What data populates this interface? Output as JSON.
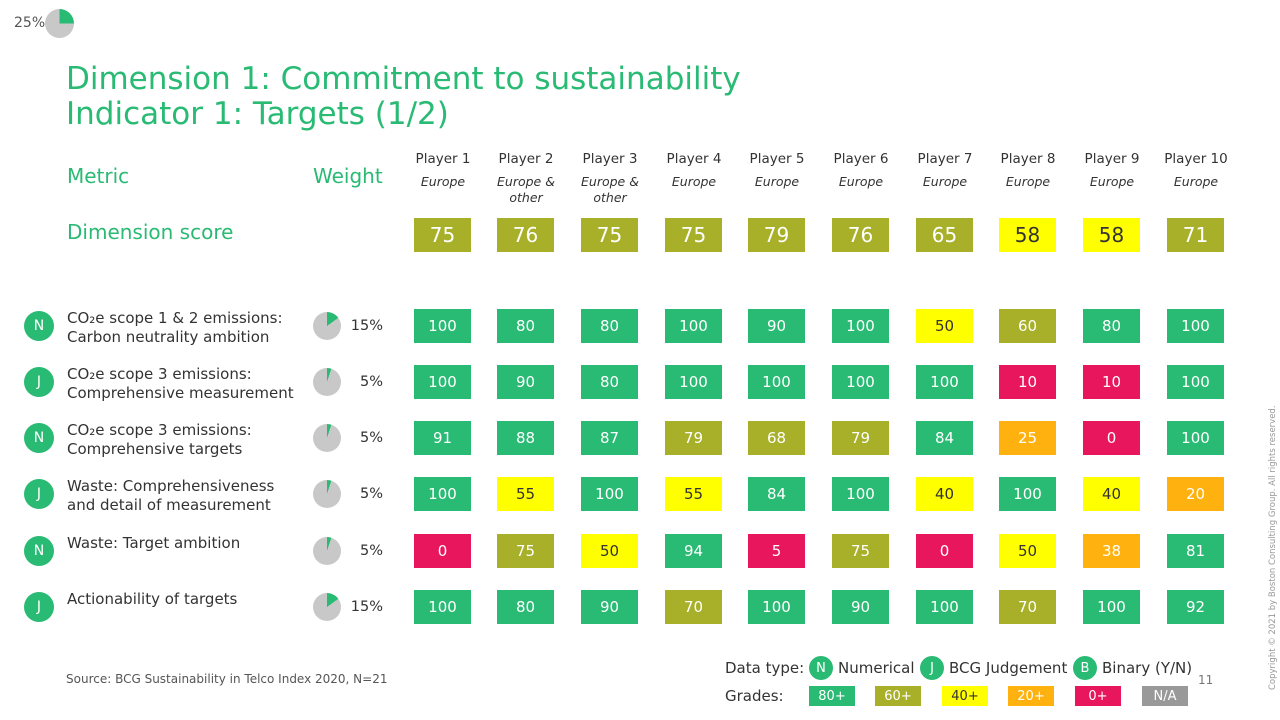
{
  "progress": {
    "label": "25%",
    "value": 0.25
  },
  "title": {
    "line1": "Dimension 1: Commitment to sustainability",
    "line2": "Indicator 1: Targets (1/2)"
  },
  "headers": {
    "metric": "Metric",
    "weight": "Weight",
    "dimension_score": "Dimension score"
  },
  "players": [
    {
      "name": "Player 1",
      "region": "Europe"
    },
    {
      "name": "Player 2",
      "region": "Europe & other"
    },
    {
      "name": "Player 3",
      "region": "Europe & other"
    },
    {
      "name": "Player 4",
      "region": "Europe"
    },
    {
      "name": "Player 5",
      "region": "Europe"
    },
    {
      "name": "Player 6",
      "region": "Europe"
    },
    {
      "name": "Player 7",
      "region": "Europe"
    },
    {
      "name": "Player 8",
      "region": "Europe"
    },
    {
      "name": "Player 9",
      "region": "Europe"
    },
    {
      "name": "Player 10",
      "region": "Europe"
    }
  ],
  "dimension_scores": [
    "75",
    "76",
    "75",
    "75",
    "79",
    "76",
    "65",
    "58",
    "58",
    "71"
  ],
  "rows": [
    {
      "type": "N",
      "label_line1": "CO₂e scope 1 & 2 emissions:",
      "label_line2": "Carbon neutrality ambition",
      "weight": "15%",
      "weight_value": 0.15,
      "values": [
        "100",
        "80",
        "80",
        "100",
        "90",
        "100",
        "50",
        "60",
        "80",
        "100"
      ]
    },
    {
      "type": "J",
      "label_line1": "CO₂e scope 3 emissions:",
      "label_line2": "Comprehensive measurement",
      "weight": "5%",
      "weight_value": 0.05,
      "values": [
        "100",
        "90",
        "80",
        "100",
        "100",
        "100",
        "100",
        "10",
        "10",
        "100"
      ]
    },
    {
      "type": "N",
      "label_line1": "CO₂e scope 3 emissions:",
      "label_line2": "Comprehensive targets",
      "weight": "5%",
      "weight_value": 0.05,
      "values": [
        "91",
        "88",
        "87",
        "79",
        "68",
        "79",
        "84",
        "25",
        "0",
        "100"
      ]
    },
    {
      "type": "J",
      "label_line1": "Waste: Comprehensiveness",
      "label_line2": "and detail of measurement",
      "weight": "5%",
      "weight_value": 0.05,
      "values": [
        "100",
        "55",
        "100",
        "55",
        "84",
        "100",
        "40",
        "100",
        "40",
        "20"
      ]
    },
    {
      "type": "N",
      "label_line1": "Waste: Target ambition",
      "label_line2": "",
      "weight": "5%",
      "weight_value": 0.05,
      "values": [
        "0",
        "75",
        "50",
        "94",
        "5",
        "75",
        "0",
        "50",
        "38",
        "81"
      ]
    },
    {
      "type": "J",
      "label_line1": "Actionability of targets",
      "label_line2": "",
      "weight": "15%",
      "weight_value": 0.15,
      "values": [
        "100",
        "80",
        "90",
        "70",
        "100",
        "90",
        "100",
        "70",
        "100",
        "92"
      ]
    }
  ],
  "legend": {
    "data_type_label": "Data type:",
    "types": [
      {
        "badge": "N",
        "label": "Numerical"
      },
      {
        "badge": "J",
        "label": "BCG Judgement"
      },
      {
        "badge": "B",
        "label": "Binary (Y/N)"
      }
    ],
    "grades_label": "Grades:",
    "grades": [
      {
        "label": "80+",
        "color": "#29ba74",
        "text_color": "#ffffff"
      },
      {
        "label": "60+",
        "color": "#a8b02a",
        "text_color": "#ffffff"
      },
      {
        "label": "40+",
        "color": "#ffff00",
        "text_color": "#333333"
      },
      {
        "label": "20+",
        "color": "#ffb20f",
        "text_color": "#ffffff"
      },
      {
        "label": "0+",
        "color": "#e8175d",
        "text_color": "#ffffff"
      },
      {
        "label": "N/A",
        "color": "#999999",
        "text_color": "#ffffff"
      }
    ]
  },
  "source": "Source: BCG Sustainability in Telco Index 2020, N=21",
  "page_number": "11",
  "copyright": "Copyright © 2021 by Boston Consulting Group. All rights reserved.",
  "colors": {
    "accent": "#29ba74",
    "pie_gray": "#c8c8c8"
  }
}
